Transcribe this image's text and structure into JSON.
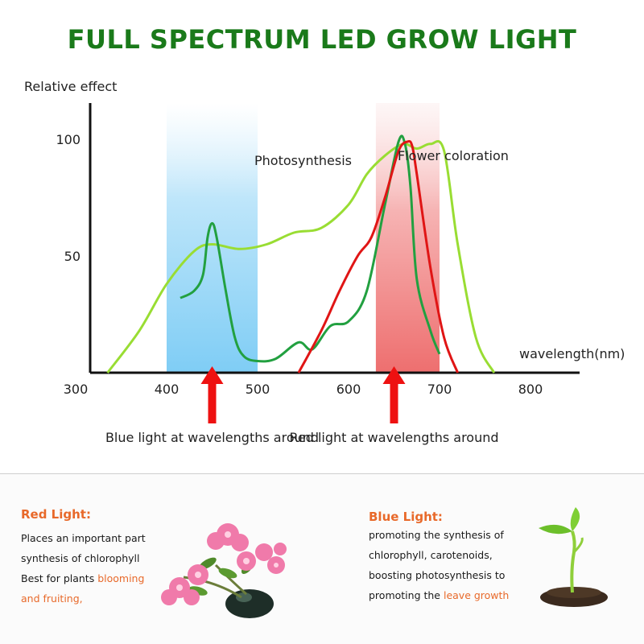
{
  "chart_data": {
    "type": "line",
    "title": "FULL SPECTRUM LED GROW LIGHT",
    "ylabel": "Relative effect",
    "xlabel": "wavelength(nm)",
    "xlim": [
      300,
      800
    ],
    "ylim": [
      0,
      100
    ],
    "x_ticks": [
      "300",
      "400",
      "500",
      "600",
      "700",
      "800"
    ],
    "y_ticks": [
      "50",
      "100"
    ],
    "highlight_bands": [
      {
        "range": [
          400,
          500
        ],
        "color": "#8fd3f4"
      },
      {
        "range": [
          630,
          700
        ],
        "color": "#f08080"
      }
    ],
    "annotations": [
      {
        "text": "Photosynthesis",
        "x": 550,
        "y": 89
      },
      {
        "text": "Flower coloration",
        "x": 715,
        "y": 91
      },
      {
        "text": "Blue light at wavelengths around",
        "x": 450
      },
      {
        "text": "Red light at wavelengths around",
        "x": 650
      }
    ],
    "arrows": [
      {
        "x": 450,
        "color": "#ee1111"
      },
      {
        "x": 650,
        "color": "#ee1111"
      }
    ],
    "series": [
      {
        "color": "#99dd33",
        "x": [
          335,
          370,
          400,
          430,
          450,
          480,
          510,
          540,
          570,
          600,
          620,
          640,
          660,
          675,
          690,
          705,
          720,
          740,
          760
        ],
        "y": [
          0,
          18,
          38,
          52,
          55,
          53,
          55,
          60,
          62,
          72,
          85,
          93,
          98,
          96,
          98,
          95,
          55,
          15,
          0
        ]
      },
      {
        "color": "#22a040",
        "x": [
          415,
          430,
          440,
          445,
          450,
          455,
          465,
          475,
          485,
          500,
          520,
          545,
          560,
          580,
          600,
          620,
          640,
          655,
          662,
          668,
          675,
          690,
          700
        ],
        "y": [
          32,
          35,
          42,
          58,
          64,
          58,
          35,
          15,
          7,
          5,
          6,
          13,
          10,
          20,
          22,
          35,
          72,
          99,
          98,
          80,
          40,
          18,
          8
        ]
      },
      {
        "color": "#e01515",
        "x": [
          545,
          570,
          590,
          610,
          625,
          640,
          655,
          665,
          670,
          675,
          690,
          705,
          720
        ],
        "y": [
          0,
          18,
          35,
          50,
          58,
          75,
          95,
          99,
          97,
          85,
          45,
          15,
          0
        ]
      }
    ]
  },
  "panels": {
    "red": {
      "heading": "Red Light:",
      "line1": "Places an important part",
      "line2": "synthesis of chlorophyll",
      "line3_plain": "Best for plants ",
      "line3_highlight": "blooming",
      "line4_highlight": "and fruiting,"
    },
    "blue": {
      "heading": "Blue Light:",
      "line1": "promoting the synthesis of",
      "line2": "chlorophyll, carotenoids,",
      "line3": "boosting photosynthesis to",
      "line4_plain": "promoting the ",
      "line4_highlight": "leave growth"
    }
  },
  "colors": {
    "title": "#1a7a1a",
    "accent_orange": "#e8692a"
  },
  "icons": {
    "flowers": "pink-azalea-flowers-picture",
    "seedling": "sprouting-seedling-picture"
  }
}
